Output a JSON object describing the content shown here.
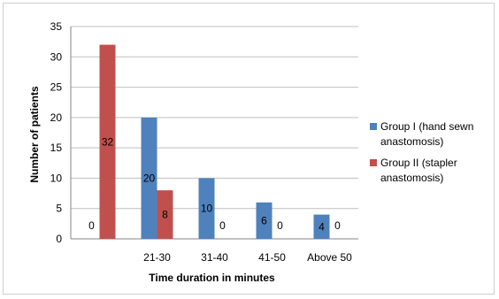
{
  "chart_data": {
    "type": "bar",
    "categories": [
      "",
      "21-30",
      "31-40",
      "41-50",
      "Above 50"
    ],
    "series": [
      {
        "name": "Group I (hand sewn anastomosis)",
        "name_lines": [
          "Group I (hand sewn",
          "anastomosis)"
        ],
        "color": "#4f81bd",
        "values": [
          0,
          20,
          10,
          6,
          4
        ]
      },
      {
        "name": "Group II (stapler anastomosis)",
        "name_lines": [
          "Group II (stapler",
          "anastomosis)"
        ],
        "color": "#c0504d",
        "values": [
          32,
          8,
          0,
          0,
          0
        ]
      }
    ],
    "xlabel": "Time duration in minutes",
    "ylabel": "Number of patients",
    "ylim": [
      0,
      35
    ],
    "yticks": [
      0,
      5,
      10,
      15,
      20,
      25,
      30,
      35
    ],
    "grid": true,
    "legend": "right",
    "gridline_color": "#bfbfbf"
  }
}
